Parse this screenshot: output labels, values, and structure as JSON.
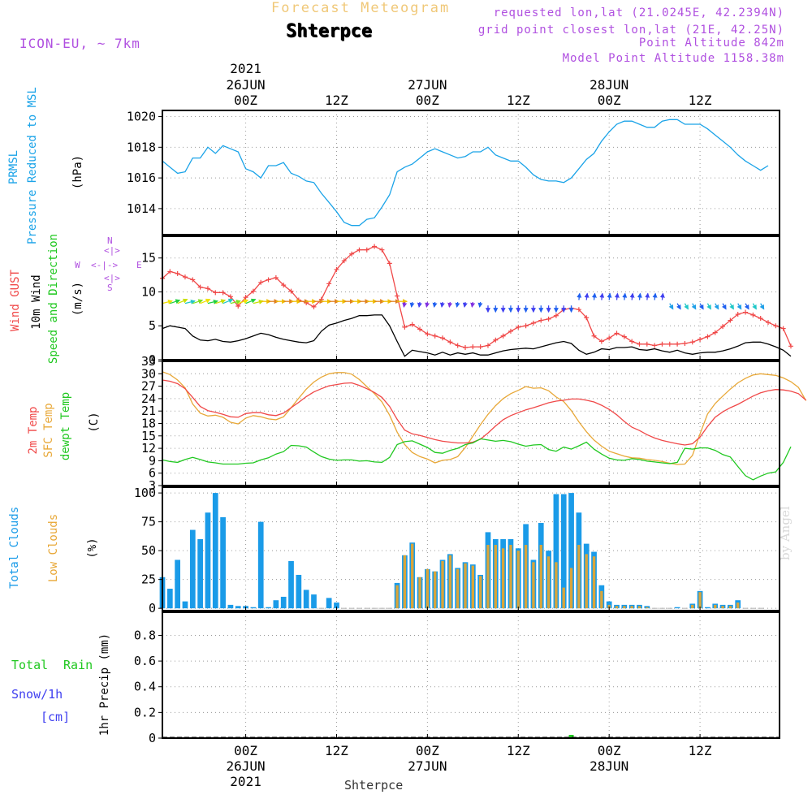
{
  "header": {
    "title": "Forecast Meteogram",
    "location": "Shterpce",
    "model": "ICON-EU, ~ 7km",
    "requested": "requested lon,lat (21.0245E, 42.2394N)",
    "grid": "grid point closest lon,lat (21E, 42.25N)",
    "point_alt": "Point Altitude 842m",
    "model_alt": "Model Point Altitude 1158.38m",
    "footer": "Shterpce",
    "watermark": "by Angel"
  },
  "colors": {
    "pressure": "#1aa3e8",
    "gust": "#f04848",
    "wind": "#000000",
    "temp": "#f04848",
    "sfc": "#e8a838",
    "dew": "#20c820",
    "total_cloud": "#1a9be8",
    "low_cloud": "#d9a53a",
    "rain": "#20c820",
    "snow": "#4040f0",
    "purple": "#b050e0"
  },
  "axis": {
    "top_year": "2021",
    "top_labels": [
      {
        "h": 6,
        "lines": [
          "26JUN",
          "00Z"
        ]
      },
      {
        "h": 18,
        "lines": [
          "12Z"
        ]
      },
      {
        "h": 30,
        "lines": [
          "27JUN",
          "00Z"
        ]
      },
      {
        "h": 42,
        "lines": [
          "12Z"
        ]
      },
      {
        "h": 54,
        "lines": [
          "28JUN",
          "00Z"
        ]
      },
      {
        "h": 66,
        "lines": [
          "12Z"
        ]
      }
    ],
    "bottom_year": "2021",
    "bottom_labels": [
      {
        "h": 6,
        "lines": [
          "00Z",
          "26JUN"
        ]
      },
      {
        "h": 18,
        "lines": [
          "12Z"
        ]
      },
      {
        "h": 30,
        "lines": [
          "00Z",
          "27JUN"
        ]
      },
      {
        "h": 42,
        "lines": [
          "12Z"
        ]
      },
      {
        "h": 54,
        "lines": [
          "00Z",
          "28JUN"
        ]
      },
      {
        "h": 66,
        "lines": [
          "12Z"
        ]
      }
    ]
  },
  "labels": {
    "p1": [
      "PRMSL",
      "Pressure Reduced to MSL",
      "(hPa)"
    ],
    "p2": [
      "Wind GUST",
      "10m Wind",
      "Speed and Direction",
      "(m/s)"
    ],
    "compass": {
      "n": "N",
      "s": "S",
      "w": "W",
      "e": "E",
      "hline": "<-|->"
    },
    "p3": [
      "2m Temp",
      "SFC Temp",
      "dewpt Temp",
      "(C)"
    ],
    "p4": [
      "Total Clouds",
      "Low Clouds",
      "(%)"
    ],
    "p5_left": [
      "Total",
      "Rain",
      "Snow/1h",
      "[cm]"
    ],
    "p5_axis": "1hr Precip (mm)"
  },
  "chart_data": [
    {
      "type": "line",
      "title": "PRMSL Pressure Reduced to MSL",
      "ylabel": "(hPa)",
      "ylim": [
        1012.3,
        1020.4
      ],
      "yticks": [
        1014,
        1016,
        1018,
        1020
      ],
      "x_hours_start": -5,
      "x_step_hours": 1,
      "values": [
        1017.1,
        1016.7,
        1016.3,
        1016.4,
        1017.3,
        1017.3,
        1018.0,
        1017.6,
        1018.1,
        1017.9,
        1017.7,
        1016.6,
        1016.4,
        1016.0,
        1016.8,
        1016.8,
        1017.0,
        1016.3,
        1016.1,
        1015.8,
        1015.7,
        1015.0,
        1014.4,
        1013.8,
        1013.1,
        1012.9,
        1012.9,
        1013.3,
        1013.4,
        1014.1,
        1014.9,
        1016.4,
        1016.7,
        1016.9,
        1017.3,
        1017.7,
        1017.9,
        1017.7,
        1017.5,
        1017.3,
        1017.4,
        1017.7,
        1017.7,
        1018.0,
        1017.5,
        1017.3,
        1017.1,
        1017.1,
        1016.7,
        1016.2,
        1015.9,
        1015.8,
        1015.8,
        1015.7,
        1016.0,
        1016.6,
        1017.2,
        1017.6,
        1018.4,
        1019.0,
        1019.5,
        1019.7,
        1019.7,
        1019.5,
        1019.3,
        1019.3,
        1019.7,
        1019.8,
        1019.8,
        1019.5,
        1019.5,
        1019.5,
        1019.2,
        1018.8,
        1018.4,
        1018.0,
        1017.5,
        1017.1,
        1016.8,
        1016.5,
        1016.8
      ]
    },
    {
      "type": "line",
      "title": "Wind GUST / 10m Wind Speed and Direction",
      "ylabel": "(m/s)",
      "ylim": [
        0,
        18.2
      ],
      "yticks": [
        0,
        5,
        10,
        15
      ],
      "x_hours_start": -5,
      "x_step_hours": 1,
      "series": [
        {
          "name": "Wind GUST",
          "values": [
            12.0,
            13.0,
            12.7,
            12.2,
            11.8,
            10.7,
            10.5,
            9.9,
            9.9,
            9.3,
            7.9,
            9.2,
            10.1,
            11.4,
            11.8,
            12.1,
            11.0,
            10.1,
            8.8,
            8.4,
            7.8,
            8.9,
            11.2,
            13.3,
            14.6,
            15.6,
            16.2,
            16.2,
            16.7,
            16.2,
            14.2,
            9.4,
            4.8,
            5.2,
            4.5,
            3.8,
            3.5,
            3.2,
            2.6,
            2.1,
            1.8,
            1.9,
            1.9,
            2.1,
            2.9,
            3.5,
            4.2,
            4.8,
            5.0,
            5.4,
            5.8,
            6.0,
            6.5,
            7.4,
            7.6,
            7.4,
            6.2,
            3.5,
            2.7,
            3.2,
            3.9,
            3.4,
            2.7,
            2.3,
            2.3,
            2.1,
            2.3,
            2.3,
            2.3,
            2.4,
            2.6,
            3.0,
            3.4,
            4.0,
            4.9,
            5.8,
            6.7,
            7.0,
            6.6,
            6.1,
            5.5,
            5.0,
            4.6,
            2.0
          ]
        },
        {
          "name": "10m Wind",
          "values": [
            4.6,
            5.0,
            4.8,
            4.6,
            3.5,
            2.9,
            2.8,
            3.0,
            2.7,
            2.6,
            2.8,
            3.1,
            3.5,
            3.9,
            3.7,
            3.3,
            3.0,
            2.8,
            2.6,
            2.5,
            2.8,
            4.2,
            5.1,
            5.4,
            5.8,
            6.1,
            6.5,
            6.5,
            6.6,
            6.6,
            5.0,
            2.7,
            0.5,
            1.4,
            1.2,
            1.0,
            0.7,
            1.1,
            0.7,
            1.0,
            0.8,
            1.0,
            0.7,
            0.7,
            1.0,
            1.3,
            1.5,
            1.6,
            1.7,
            1.6,
            1.9,
            2.2,
            2.5,
            2.7,
            2.4,
            1.4,
            0.8,
            1.1,
            1.6,
            1.5,
            1.8,
            1.8,
            1.9,
            1.5,
            1.4,
            1.6,
            1.3,
            1.1,
            1.4,
            1.0,
            0.8,
            1.0,
            1.1,
            1.1,
            1.3,
            1.6,
            2.0,
            2.5,
            2.6,
            2.6,
            2.3,
            1.9,
            1.4,
            0.5
          ]
        }
      ]
    },
    {
      "type": "line",
      "title": "2m Temp / SFC Temp / dewpt Temp",
      "ylabel": "(C)",
      "ylim": [
        3,
        33
      ],
      "yticks": [
        3,
        6,
        9,
        12,
        15,
        18,
        21,
        24,
        27,
        30,
        33
      ],
      "x_hours_start": -5,
      "x_step_hours": 1,
      "series": [
        {
          "name": "2m Temp",
          "values": [
            28.5,
            28.2,
            27.6,
            26.4,
            24.3,
            22.1,
            21.1,
            20.7,
            20.2,
            19.6,
            19.5,
            20.4,
            20.6,
            20.6,
            20.1,
            19.9,
            20.5,
            21.8,
            23.1,
            24.5,
            25.6,
            26.4,
            27.1,
            27.4,
            27.7,
            27.8,
            27.2,
            26.4,
            25.5,
            24.3,
            22.1,
            19.0,
            16.4,
            15.5,
            15.1,
            14.6,
            14.1,
            13.7,
            13.5,
            13.3,
            13.3,
            13.5,
            14.2,
            15.7,
            17.4,
            18.9,
            19.9,
            20.6,
            21.3,
            21.8,
            22.4,
            23.0,
            23.4,
            23.6,
            23.9,
            23.9,
            23.6,
            23.2,
            22.4,
            21.4,
            20.1,
            18.5,
            17.1,
            16.3,
            15.3,
            14.5,
            13.9,
            13.5,
            13.1,
            12.8,
            13.1,
            14.7,
            17.3,
            19.5,
            20.8,
            21.8,
            22.6,
            23.6,
            24.6,
            25.4,
            25.9,
            26.2,
            26.1,
            25.8,
            25.2,
            23.6
          ]
        },
        {
          "name": "SFC Temp",
          "values": [
            30.5,
            29.8,
            28.5,
            26.6,
            22.7,
            20.5,
            19.8,
            20.0,
            19.5,
            18.3,
            17.9,
            19.3,
            19.9,
            19.6,
            19.1,
            18.9,
            19.6,
            21.8,
            24.1,
            26.3,
            28.0,
            29.2,
            30.0,
            30.3,
            30.3,
            29.9,
            28.6,
            26.9,
            25.2,
            23.2,
            20.0,
            15.9,
            12.9,
            11.0,
            10.0,
            9.4,
            8.5,
            9.1,
            9.3,
            10.0,
            12.2,
            14.9,
            17.7,
            20.2,
            22.3,
            24.0,
            25.2,
            26.0,
            26.9,
            26.5,
            26.6,
            25.9,
            24.4,
            23.3,
            21.1,
            18.4,
            16.0,
            14.0,
            12.5,
            11.3,
            10.7,
            10.1,
            9.7,
            9.6,
            9.3,
            9.1,
            8.8,
            8.4,
            8.1,
            8.2,
            10.3,
            15.5,
            20.3,
            22.8,
            24.6,
            26.3,
            27.8,
            28.9,
            29.7,
            30.0,
            29.8,
            29.6,
            29.0,
            28.1,
            26.7,
            23.5
          ]
        },
        {
          "name": "dewpt Temp",
          "values": [
            9.2,
            8.8,
            8.6,
            9.3,
            9.8,
            9.3,
            8.7,
            8.5,
            8.2,
            8.2,
            8.2,
            8.4,
            8.5,
            9.2,
            9.7,
            10.6,
            11.2,
            12.7,
            12.6,
            12.3,
            11.1,
            10.0,
            9.4,
            9.1,
            9.2,
            9.2,
            8.9,
            9.0,
            8.7,
            8.6,
            9.8,
            12.9,
            13.6,
            13.8,
            13.0,
            12.2,
            11.0,
            10.8,
            11.5,
            12.0,
            12.9,
            13.3,
            14.3,
            14.0,
            13.7,
            13.9,
            13.6,
            13.0,
            12.5,
            12.8,
            12.9,
            11.7,
            11.3,
            12.3,
            11.8,
            12.6,
            13.5,
            11.8,
            10.6,
            9.6,
            9.2,
            9.1,
            9.5,
            9.3,
            8.9,
            8.7,
            8.5,
            8.3,
            8.6,
            12.0,
            11.8,
            12.1,
            12.1,
            11.5,
            10.5,
            9.9,
            7.6,
            5.4,
            4.4,
            5.3,
            6.0,
            6.3,
            8.6,
            12.4
          ]
        }
      ]
    },
    {
      "type": "bar",
      "title": "Total Clouds / Low Clouds",
      "ylabel": "(%)",
      "ylim": [
        -2,
        105
      ],
      "yticks": [
        0,
        25,
        50,
        75,
        100
      ],
      "x_hours_start": -5,
      "x_step_hours": 1,
      "series": [
        {
          "name": "Total Clouds",
          "values": [
            27,
            17,
            42,
            6,
            68,
            60,
            83,
            100,
            79,
            3,
            2,
            2,
            1,
            75,
            1,
            7,
            10,
            41,
            29,
            16,
            12,
            0,
            9,
            5,
            0,
            0,
            0,
            0,
            0,
            0,
            0,
            22,
            46,
            57,
            27,
            34,
            32,
            42,
            47,
            35,
            40,
            38,
            29,
            66,
            60,
            60,
            60,
            52,
            73,
            42,
            74,
            50,
            99,
            99,
            100,
            83,
            56,
            49,
            20,
            6,
            3,
            3,
            3,
            3,
            2,
            0,
            0,
            0,
            1,
            0,
            4,
            15,
            1,
            4,
            3,
            3,
            7,
            0,
            0,
            0
          ]
        },
        {
          "name": "Low Clouds",
          "values": [
            0,
            0,
            0,
            0,
            0,
            0,
            0,
            0,
            0,
            0,
            0,
            0,
            0,
            0,
            0,
            0,
            0,
            0,
            0,
            0,
            0,
            0,
            0,
            0,
            0,
            0,
            0,
            0,
            0,
            0,
            0,
            20,
            46,
            56,
            27,
            34,
            32,
            41,
            46,
            34,
            39,
            37,
            28,
            55,
            55,
            52,
            55,
            50,
            55,
            40,
            55,
            45,
            40,
            18,
            35,
            55,
            47,
            45,
            15,
            3,
            2,
            2,
            2,
            2,
            1,
            0,
            0,
            0,
            0,
            0,
            3,
            14,
            0,
            3,
            2,
            2,
            5,
            0,
            0,
            0
          ]
        }
      ]
    },
    {
      "type": "bar",
      "title": "1hr Precip",
      "ylabel": "1hr Precip (mm)",
      "ylim": [
        0,
        0.98
      ],
      "yticks": [
        0,
        0.2,
        0.4,
        0.6,
        0.8
      ],
      "x_hours_start": -5,
      "x_step_hours": 1,
      "series": [
        {
          "name": "Total Rain",
          "values": [
            0,
            0,
            0,
            0,
            0,
            0,
            0,
            0,
            0,
            0,
            0,
            0,
            0,
            0,
            0,
            0,
            0,
            0,
            0,
            0,
            0,
            0,
            0,
            0,
            0,
            0,
            0,
            0,
            0,
            0,
            0,
            0,
            0,
            0,
            0,
            0,
            0,
            0,
            0,
            0,
            0,
            0,
            0,
            0,
            0,
            0,
            0,
            0,
            0,
            0,
            0,
            0,
            0,
            0,
            0.01,
            0,
            0,
            0,
            0,
            0,
            0,
            0,
            0,
            0,
            0,
            0,
            0,
            0,
            0,
            0,
            0,
            0,
            0,
            0,
            0,
            0,
            0,
            0,
            0,
            0
          ]
        },
        {
          "name": "Snow/1h",
          "values": [
            0,
            0,
            0,
            0,
            0,
            0,
            0,
            0,
            0,
            0,
            0,
            0,
            0,
            0,
            0,
            0,
            0,
            0,
            0,
            0,
            0,
            0,
            0,
            0,
            0,
            0,
            0,
            0,
            0,
            0,
            0,
            0,
            0,
            0,
            0,
            0,
            0,
            0,
            0,
            0,
            0,
            0,
            0,
            0,
            0,
            0,
            0,
            0,
            0,
            0,
            0,
            0,
            0,
            0,
            0,
            0,
            0,
            0,
            0,
            0,
            0,
            0,
            0,
            0,
            0,
            0,
            0,
            0,
            0,
            0,
            0,
            0,
            0,
            0,
            0,
            0,
            0,
            0,
            0,
            0
          ]
        }
      ]
    }
  ]
}
